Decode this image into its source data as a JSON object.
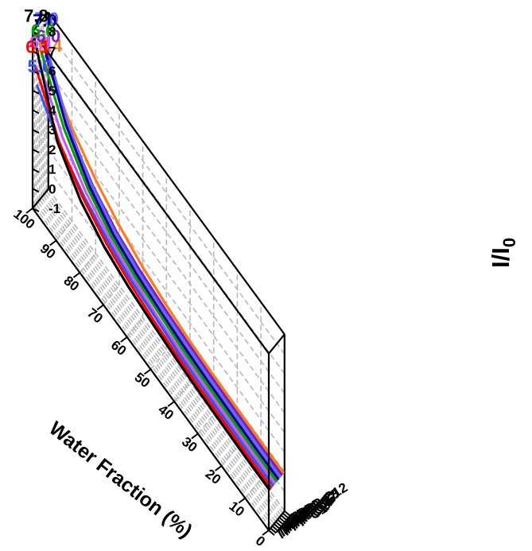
{
  "chart_data": {
    "type": "3d-ribbon-line",
    "title": "",
    "xlabel": "Water Fraction (%)",
    "ylabel": "",
    "zlabel": "I/I",
    "zlabel_subscript": "0",
    "xlim": [
      0,
      100
    ],
    "zlim": [
      -1,
      8
    ],
    "x_ticks": [
      0,
      10,
      20,
      30,
      40,
      50,
      60,
      70,
      80,
      90,
      100
    ],
    "z_ticks": [
      -1,
      0,
      1,
      2,
      3,
      4,
      5,
      6,
      7,
      8
    ],
    "categories": [
      "TPPP-C1",
      "TPPP-C2",
      "TPPP-C3",
      "TPPP-C4",
      "TPPP-C5",
      "TPPP-C6",
      "TPPP-C7",
      "TPPP-C8",
      "TPPP-C12"
    ],
    "x": [
      0,
      10,
      20,
      30,
      40,
      50,
      60,
      70,
      80,
      90,
      100
    ],
    "series": [
      {
        "name": "TPPP-C1",
        "color": "#000000",
        "peak_label": "7.8",
        "values": [
          1.0,
          1.0,
          1.05,
          1.1,
          1.2,
          1.35,
          1.55,
          1.9,
          2.6,
          4.0,
          7.8
        ]
      },
      {
        "name": "TPPP-C2",
        "color": "#ff0000",
        "peak_label": "6.1",
        "values": [
          1.0,
          1.0,
          1.05,
          1.1,
          1.2,
          1.35,
          1.6,
          2.0,
          2.7,
          3.9,
          6.1
        ]
      },
      {
        "name": "TPPP-C3",
        "color": "#3355ee",
        "peak_label": "5.0",
        "values": [
          1.0,
          1.0,
          1.05,
          1.1,
          1.2,
          1.4,
          1.6,
          2.0,
          2.6,
          3.5,
          5.0
        ]
      },
      {
        "name": "TPPP-C4",
        "color": "#cc55ff",
        "peak_label": "6.1",
        "values": [
          1.0,
          1.0,
          1.05,
          1.1,
          1.2,
          1.35,
          1.6,
          2.0,
          2.7,
          3.9,
          6.1
        ]
      },
      {
        "name": "TPPP-C5",
        "color": "#00a000",
        "peak_label": "6.6",
        "values": [
          1.0,
          1.0,
          1.05,
          1.1,
          1.2,
          1.4,
          1.6,
          2.0,
          2.8,
          4.2,
          6.6
        ]
      },
      {
        "name": "TPPP-C6",
        "color": "#000088",
        "peak_label": "7.0",
        "values": [
          1.0,
          1.0,
          1.05,
          1.1,
          1.2,
          1.35,
          1.6,
          2.0,
          2.8,
          4.3,
          7.0
        ]
      },
      {
        "name": "TPPP-C7",
        "color": "#6666ff",
        "peak_label": "7.0",
        "values": [
          1.0,
          1.0,
          1.05,
          1.1,
          1.2,
          1.35,
          1.6,
          2.0,
          2.8,
          4.3,
          7.0
        ]
      },
      {
        "name": "TPPP-C8",
        "color": "#7a1fc0",
        "peak_label": "6.0",
        "values": [
          1.0,
          1.0,
          1.05,
          1.1,
          1.2,
          1.35,
          1.55,
          1.9,
          2.6,
          3.8,
          6.0
        ]
      },
      {
        "name": "TPPP-C12",
        "color": "#ff7a1a",
        "peak_label": "5.4",
        "values": [
          1.0,
          1.0,
          1.05,
          1.1,
          1.2,
          1.4,
          1.7,
          2.2,
          2.9,
          3.9,
          5.4
        ]
      }
    ],
    "grid": true,
    "legend": "none"
  }
}
